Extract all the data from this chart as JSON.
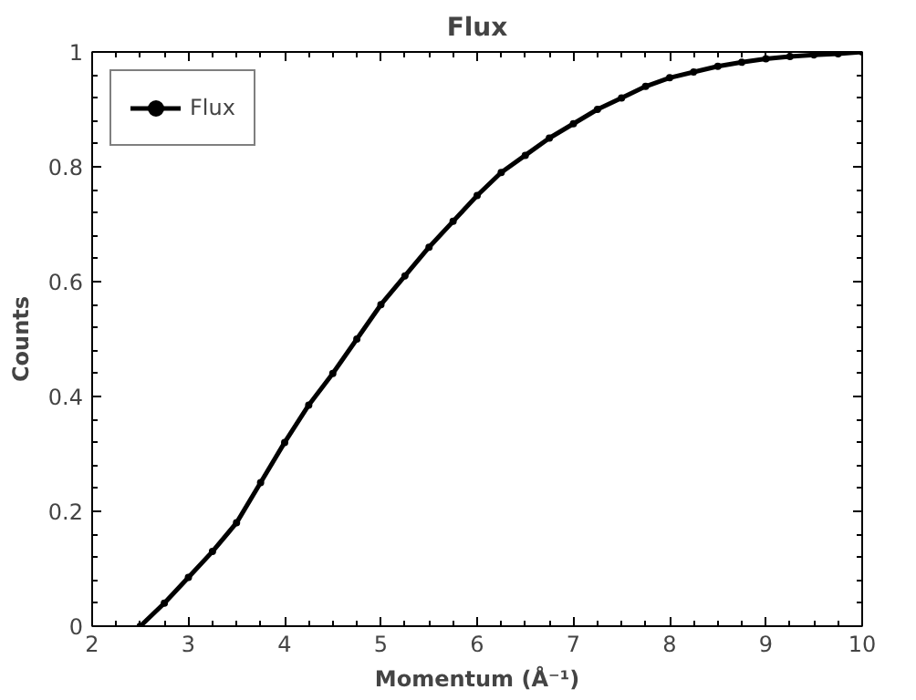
{
  "chart_data": {
    "type": "line",
    "title": "Flux",
    "xlabel": "Momentum (Å⁻¹)",
    "ylabel": "Counts",
    "series": [
      {
        "name": "Flux",
        "color": "#000000",
        "x": [
          2.5,
          2.75,
          3,
          3.25,
          3.5,
          3.75,
          4,
          4.25,
          4.5,
          4.75,
          5,
          5.25,
          5.5,
          5.75,
          6,
          6.25,
          6.5,
          6.75,
          7,
          7.25,
          7.5,
          7.75,
          8,
          8.25,
          8.5,
          8.75,
          9,
          9.25,
          9.5,
          9.75,
          10
        ],
        "values": [
          0,
          0.04,
          0.085,
          0.13,
          0.18,
          0.25,
          0.32,
          0.385,
          0.44,
          0.5,
          0.56,
          0.61,
          0.66,
          0.705,
          0.75,
          0.79,
          0.82,
          0.85,
          0.875,
          0.9,
          0.92,
          0.94,
          0.955,
          0.965,
          0.975,
          0.982,
          0.988,
          0.992,
          0.995,
          0.997,
          1.0
        ]
      }
    ],
    "xlim": [
      2,
      10
    ],
    "ylim": [
      0,
      1
    ],
    "xticks": [
      2,
      3,
      4,
      5,
      6,
      7,
      8,
      9,
      10
    ],
    "yticks": [
      0,
      0.2,
      0.4,
      0.6,
      0.8,
      1
    ],
    "legend": "top left",
    "marker": "circle",
    "line_style": "solid",
    "grid": false
  }
}
